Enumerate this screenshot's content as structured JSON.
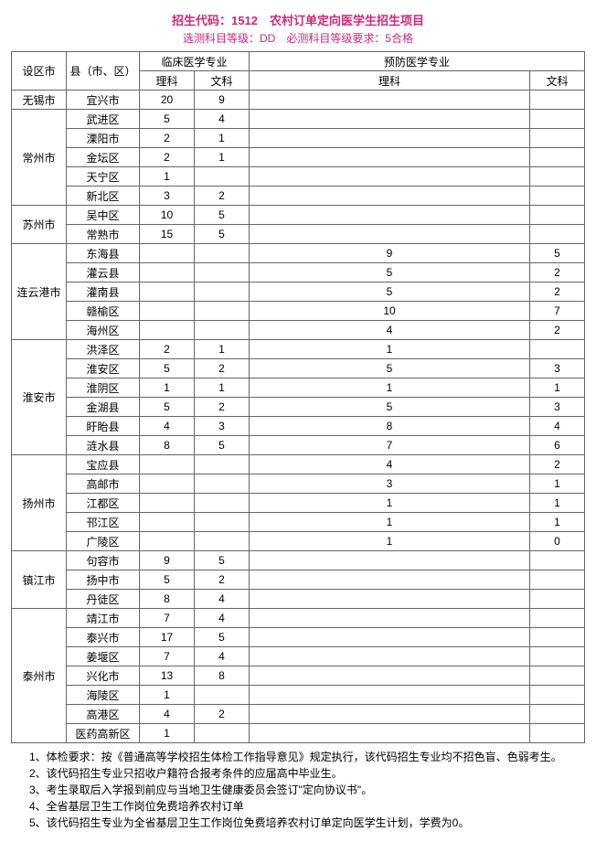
{
  "title": "招生代码：1512　农村订单定向医学生招生项目",
  "subtitle": "选测科目等级：DD　必测科目等级要求：5合格",
  "headers": {
    "city": "设区市",
    "county": "县（市、区）",
    "major1": "临床医学专业",
    "major2": "预防医学专业",
    "science": "理科",
    "arts": "文科"
  },
  "groups": [
    {
      "city": "无锡市",
      "rows": [
        {
          "county": "宜兴市",
          "a": "20",
          "b": "9",
          "c": "",
          "d": ""
        }
      ]
    },
    {
      "city": "常州市",
      "rows": [
        {
          "county": "武进区",
          "a": "5",
          "b": "4",
          "c": "",
          "d": ""
        },
        {
          "county": "溧阳市",
          "a": "2",
          "b": "1",
          "c": "",
          "d": ""
        },
        {
          "county": "金坛区",
          "a": "2",
          "b": "1",
          "c": "",
          "d": ""
        },
        {
          "county": "天宁区",
          "a": "1",
          "b": "",
          "c": "",
          "d": ""
        },
        {
          "county": "新北区",
          "a": "3",
          "b": "2",
          "c": "",
          "d": ""
        }
      ]
    },
    {
      "city": "苏州市",
      "rows": [
        {
          "county": "吴中区",
          "a": "10",
          "b": "5",
          "c": "",
          "d": ""
        },
        {
          "county": "常熟市",
          "a": "15",
          "b": "5",
          "c": "",
          "d": ""
        }
      ]
    },
    {
      "city": "连云港市",
      "rows": [
        {
          "county": "东海县",
          "a": "",
          "b": "",
          "c": "9",
          "d": "5"
        },
        {
          "county": "灌云县",
          "a": "",
          "b": "",
          "c": "5",
          "d": "2"
        },
        {
          "county": "灌南县",
          "a": "",
          "b": "",
          "c": "5",
          "d": "2"
        },
        {
          "county": "赣榆区",
          "a": "",
          "b": "",
          "c": "10",
          "d": "7"
        },
        {
          "county": "海州区",
          "a": "",
          "b": "",
          "c": "4",
          "d": "2"
        }
      ]
    },
    {
      "city": "淮安市",
      "rows": [
        {
          "county": "洪泽区",
          "a": "2",
          "b": "1",
          "c": "1",
          "d": ""
        },
        {
          "county": "淮安区",
          "a": "5",
          "b": "2",
          "c": "5",
          "d": "3"
        },
        {
          "county": "淮阴区",
          "a": "1",
          "b": "1",
          "c": "1",
          "d": "1"
        },
        {
          "county": "金湖县",
          "a": "5",
          "b": "2",
          "c": "5",
          "d": "3"
        },
        {
          "county": "盱眙县",
          "a": "4",
          "b": "3",
          "c": "8",
          "d": "4"
        },
        {
          "county": "涟水县",
          "a": "8",
          "b": "5",
          "c": "7",
          "d": "6"
        }
      ]
    },
    {
      "city": "扬州市",
      "rows": [
        {
          "county": "宝应县",
          "a": "",
          "b": "",
          "c": "4",
          "d": "2"
        },
        {
          "county": "高邮市",
          "a": "",
          "b": "",
          "c": "3",
          "d": "1"
        },
        {
          "county": "江都区",
          "a": "",
          "b": "",
          "c": "1",
          "d": "1"
        },
        {
          "county": "邗江区",
          "a": "",
          "b": "",
          "c": "1",
          "d": "1"
        },
        {
          "county": "广陵区",
          "a": "",
          "b": "",
          "c": "1",
          "d": "0"
        }
      ]
    },
    {
      "city": "镇江市",
      "rows": [
        {
          "county": "句容市",
          "a": "9",
          "b": "5",
          "c": "",
          "d": ""
        },
        {
          "county": "扬中市",
          "a": "5",
          "b": "2",
          "c": "",
          "d": ""
        },
        {
          "county": "丹徒区",
          "a": "8",
          "b": "4",
          "c": "",
          "d": ""
        }
      ]
    },
    {
      "city": "泰州市",
      "rows": [
        {
          "county": "靖江市",
          "a": "7",
          "b": "4",
          "c": "",
          "d": ""
        },
        {
          "county": "泰兴市",
          "a": "17",
          "b": "5",
          "c": "",
          "d": ""
        },
        {
          "county": "姜堰区",
          "a": "7",
          "b": "4",
          "c": "",
          "d": ""
        },
        {
          "county": "兴化市",
          "a": "13",
          "b": "8",
          "c": "",
          "d": ""
        },
        {
          "county": "海陵区",
          "a": "1",
          "b": "",
          "c": "",
          "d": ""
        },
        {
          "county": "高港区",
          "a": "4",
          "b": "2",
          "c": "",
          "d": ""
        },
        {
          "county": "医药高新区",
          "a": "1",
          "b": "",
          "c": "",
          "d": ""
        }
      ]
    }
  ],
  "notes": [
    "1、体检要求：按《普通高等学校招生体检工作指导意见》规定执行，该代码招生专业均不招色盲、色弱考生。",
    "2、该代码招生专业只招收户籍符合报考条件的应届高中毕业生。",
    "3、考生录取后入学报到前应与当地卫生健康委员会签订\"定向协议书\"。",
    "4、全省基层卫生工作岗位免费培养农村订单",
    "5、该代码招生专业为全省基层卫生工作岗位免费培养农村订单定向医学生计划，学费为0。"
  ]
}
